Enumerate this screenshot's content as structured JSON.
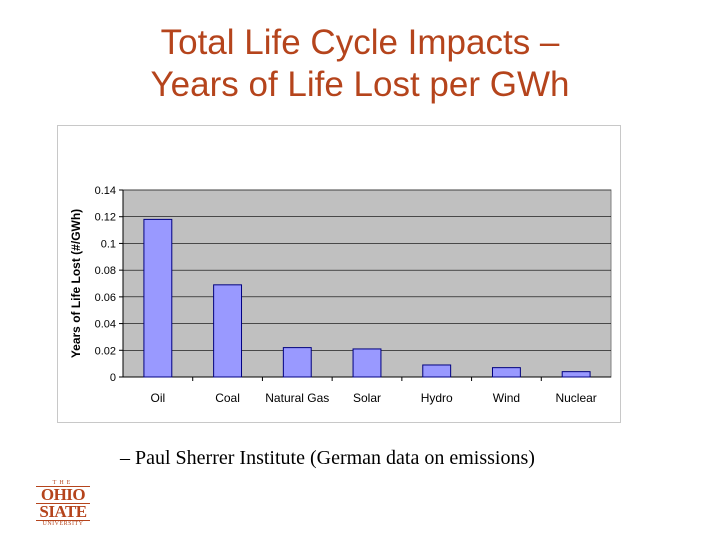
{
  "slide": {
    "title_line1": "Total Life Cycle Impacts –",
    "title_line2": "Years of Life Lost per GWh",
    "caption": "– Paul Sherrer Institute (German data on emissions)",
    "logo_top": "THE",
    "logo_line1": "OHIO",
    "logo_line2": "SIATE",
    "logo_bottom": "UNIVERSITY"
  },
  "chart_data": {
    "type": "bar",
    "categories": [
      "Oil",
      "Coal",
      "Natural Gas",
      "Solar",
      "Hydro",
      "Wind",
      "Nuclear"
    ],
    "values": [
      0.118,
      0.069,
      0.022,
      0.021,
      0.009,
      0.007,
      0.004
    ],
    "ylabel": "Years of Life Lost (#/GWh)",
    "ylim": [
      0,
      0.14
    ],
    "yticks": [
      "0",
      "0.02",
      "0.04",
      "0.06",
      "0.08",
      "0.1",
      "0.12",
      "0.14"
    ],
    "grid": true,
    "colors": {
      "bar_fill": "#9999ff",
      "bar_stroke": "#000080",
      "plot_bg": "#c0c0c0",
      "title": "#b5441c"
    }
  }
}
